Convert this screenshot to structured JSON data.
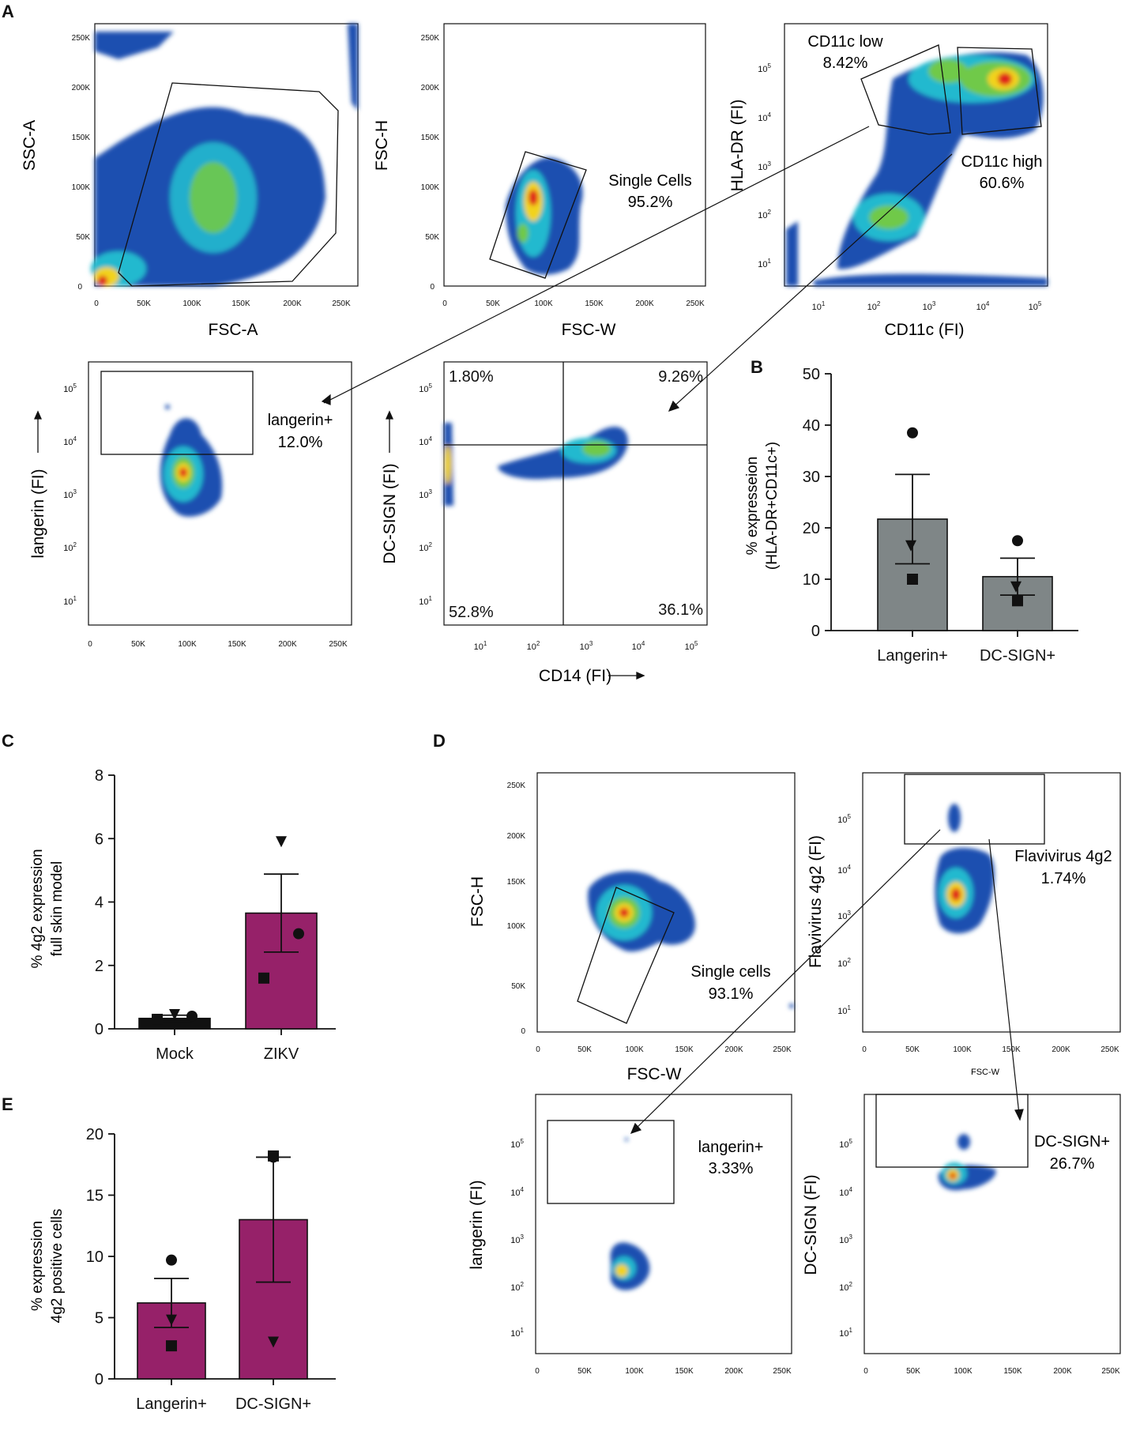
{
  "panel_letters": [
    "A",
    "B",
    "C",
    "D",
    "E"
  ],
  "colors": {
    "bar_gray": "#7f8687",
    "bar_magenta": "#962169",
    "black": "#111111",
    "density_low": "#1f4fb0",
    "density_mid": "#21b9cf",
    "density_high": "#f2d31a",
    "density_peak": "#e0221c"
  },
  "ticks": {
    "linear_x": [
      "0",
      "50K",
      "100K",
      "150K",
      "200K",
      "250K"
    ],
    "linear_y": [
      "0",
      "50K",
      "100K",
      "150K",
      "200K",
      "250K"
    ],
    "log_y": [
      "10",
      "10",
      "10",
      "10",
      "10"
    ],
    "log_exp": [
      "1",
      "2",
      "3",
      "4",
      "5"
    ]
  },
  "flow_plots": [
    {
      "id": "A1",
      "xlabel": "FSC-A",
      "ylabel": "SSC-A",
      "gates": []
    },
    {
      "id": "A2",
      "xlabel": "FSC-W",
      "ylabel": "FSC-H",
      "gates": [
        {
          "name": "Single Cells",
          "value": "95.2%"
        }
      ]
    },
    {
      "id": "A3",
      "xlabel": "CD11c (FI)",
      "ylabel": "HLA-DR (FI)",
      "gates": [
        {
          "name": "CD11c low",
          "value": "8.42%"
        },
        {
          "name": "CD11c high",
          "value": "60.6%"
        }
      ]
    },
    {
      "id": "A4",
      "xlabel": "",
      "ylabel": "langerin (FI)",
      "gates": [
        {
          "name": "langerin+",
          "value": "12.0%"
        }
      ]
    },
    {
      "id": "A5",
      "xlabel": "CD14 (FI)",
      "ylabel": "DC-SIGN (FI)",
      "quadrants": [
        "1.80%",
        "9.26%",
        "52.8%",
        "36.1%"
      ]
    },
    {
      "id": "D1",
      "xlabel": "FSC-W",
      "ylabel": "FSC-H",
      "gates": [
        {
          "name": "Single cells",
          "value": "93.1%"
        }
      ]
    },
    {
      "id": "D2",
      "xlabel": "FSC-W",
      "ylabel": "Flavivirus 4g2 (FI)",
      "gates": [
        {
          "name": "Flavivirus 4g2",
          "value": "1.74%"
        }
      ]
    },
    {
      "id": "D3",
      "xlabel": "",
      "ylabel": "langerin (FI)",
      "gates": [
        {
          "name": "langerin+",
          "value": "3.33%"
        }
      ]
    },
    {
      "id": "D4",
      "xlabel": "",
      "ylabel": "DC-SIGN (FI)",
      "gates": [
        {
          "name": "DC-SIGN+",
          "value": "26.7%"
        }
      ]
    }
  ],
  "chart_data": [
    {
      "panel": "B",
      "type": "bar",
      "categories": [
        "Langerin+",
        "DC-SIGN+"
      ],
      "values": [
        21.7,
        10.5
      ],
      "sem": [
        8.7,
        3.6
      ],
      "points": [
        [
          38.5,
          16.5,
          10.0
        ],
        [
          17.5,
          8.5,
          5.8
        ]
      ],
      "point_markers": [
        "circle",
        "triangle",
        "square"
      ],
      "ylabel": "% expresseion\n(HLA-DR+CD11c+)",
      "ylim": [
        0,
        50
      ],
      "yticks": [
        0,
        10,
        20,
        30,
        40,
        50
      ]
    },
    {
      "panel": "C",
      "type": "bar",
      "categories": [
        "Mock",
        "ZIKV"
      ],
      "values": [
        0.33,
        3.65
      ],
      "sem": [
        0.1,
        1.23
      ],
      "points": [
        [
          0.4,
          0.45,
          0.3
        ],
        [
          3.0,
          5.9,
          1.6
        ]
      ],
      "point_markers": [
        "circle",
        "triangle",
        "square"
      ],
      "ylabel": "% 4g2 expression\nfull skin model",
      "ylim": [
        0,
        8
      ],
      "yticks": [
        0,
        2,
        4,
        6,
        8
      ]
    },
    {
      "panel": "E",
      "type": "bar",
      "categories": [
        "Langerin+",
        "DC-SIGN+"
      ],
      "values": [
        6.2,
        13.0
      ],
      "sem": [
        2.0,
        5.1
      ],
      "points": [
        [
          9.7,
          4.8,
          2.7
        ],
        [
          18.1,
          3.0,
          18.2
        ]
      ],
      "point_markers": [
        "circle",
        "triangle",
        "square"
      ],
      "ylabel": "% expression\n4g2 positive cells",
      "ylim": [
        0,
        20
      ],
      "yticks": [
        0,
        5,
        10,
        15,
        20
      ]
    }
  ]
}
